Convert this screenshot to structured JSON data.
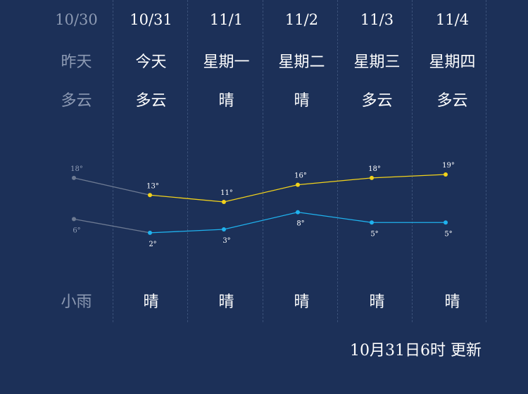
{
  "days": [
    {
      "date": "10/30",
      "weekday": "昨天",
      "day_weather": "多云",
      "night_weather": "小雨",
      "past": true
    },
    {
      "date": "10/31",
      "weekday": "今天",
      "day_weather": "多云",
      "night_weather": "晴",
      "past": false
    },
    {
      "date": "11/1",
      "weekday": "星期一",
      "day_weather": "晴",
      "night_weather": "晴",
      "past": false
    },
    {
      "date": "11/2",
      "weekday": "星期二",
      "day_weather": "晴",
      "night_weather": "晴",
      "past": false
    },
    {
      "date": "11/3",
      "weekday": "星期三",
      "day_weather": "多云",
      "night_weather": "晴",
      "past": false
    },
    {
      "date": "11/4",
      "weekday": "星期四",
      "day_weather": "多云",
      "night_weather": "晴",
      "past": false
    }
  ],
  "chart_data": {
    "type": "line",
    "categories": [
      "10/30",
      "10/31",
      "11/1",
      "11/2",
      "11/3",
      "11/4"
    ],
    "series": [
      {
        "values": [
          18,
          13,
          11,
          16,
          18,
          19
        ],
        "labels": [
          "18°",
          "13°",
          "11°",
          "16°",
          "18°",
          "19°"
        ],
        "color": "#f2d21b"
      },
      {
        "values": [
          6,
          2,
          3,
          8,
          5,
          5
        ],
        "labels": [
          "6°",
          "2°",
          "3°",
          "8°",
          "5°",
          "5°"
        ],
        "color": "#1fb2ee"
      }
    ],
    "past_color": "#6d7a92"
  },
  "footer": {
    "updated": "10月31日6时 更新"
  }
}
